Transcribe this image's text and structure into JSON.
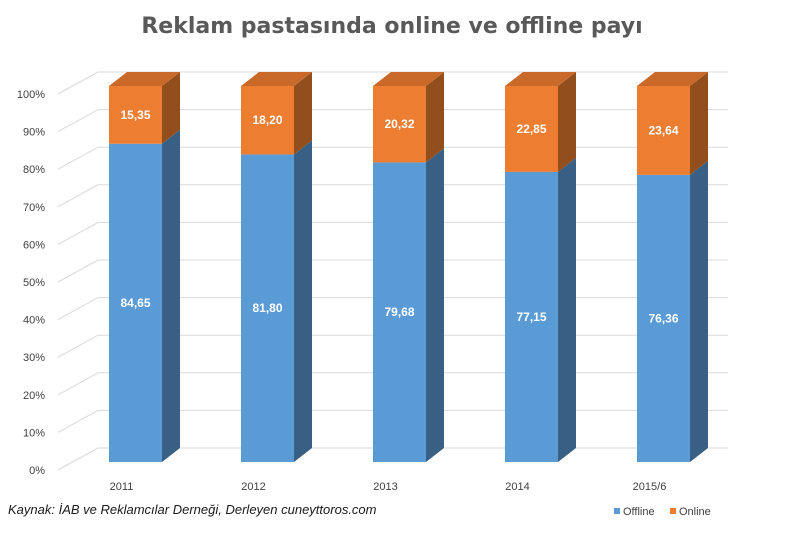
{
  "chart_data": {
    "type": "bar",
    "stacked": true,
    "three_d": true,
    "title": "Reklam pastasında online ve offline payı",
    "categories": [
      "2011",
      "2012",
      "2013",
      "2014",
      "2015/6"
    ],
    "series": [
      {
        "name": "Offline",
        "values": [
          84.65,
          81.8,
          79.68,
          77.15,
          76.36
        ],
        "labels": [
          "84,65",
          "81,80",
          "79,68",
          "77,15",
          "76,36"
        ],
        "color": "#5b9bd5"
      },
      {
        "name": "Online",
        "values": [
          15.35,
          18.2,
          20.32,
          22.85,
          23.64
        ],
        "labels": [
          "15,35",
          "18,20",
          "20,32",
          "22,85",
          "23,64"
        ],
        "color": "#ed7d31"
      }
    ],
    "y_ticks": [
      "0%",
      "10%",
      "20%",
      "30%",
      "40%",
      "50%",
      "60%",
      "70%",
      "80%",
      "90%",
      "100%"
    ],
    "ylim": [
      0,
      100
    ],
    "grid": true,
    "legend_position": "bottom-right"
  },
  "source_text": "Kaynak: İAB ve Reklamcılar Derneği, Derleyen cuneyttoros.com"
}
